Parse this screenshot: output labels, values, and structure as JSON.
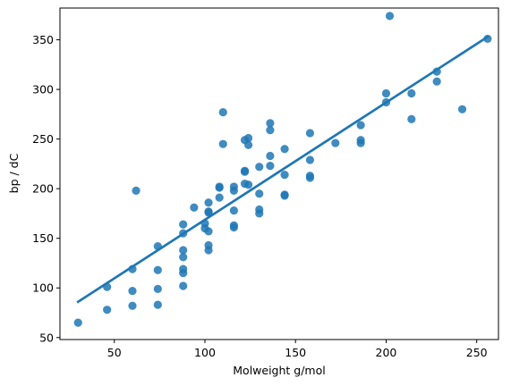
{
  "chart_data": {
    "type": "scatter",
    "title": "",
    "xlabel": "Molweight g/mol",
    "ylabel": "bp / dC",
    "xlim": [
      20,
      262
    ],
    "ylim": [
      48,
      382
    ],
    "xticks": [
      50,
      100,
      150,
      200,
      250
    ],
    "yticks": [
      50,
      100,
      150,
      200,
      250,
      300,
      350
    ],
    "grid": false,
    "legend": "none",
    "color": "#1f77b4",
    "points": [
      {
        "x": 30,
        "y": 65
      },
      {
        "x": 46,
        "y": 78
      },
      {
        "x": 46,
        "y": 101
      },
      {
        "x": 60,
        "y": 82
      },
      {
        "x": 60,
        "y": 97
      },
      {
        "x": 60,
        "y": 119
      },
      {
        "x": 62,
        "y": 198
      },
      {
        "x": 74,
        "y": 83
      },
      {
        "x": 74,
        "y": 99
      },
      {
        "x": 74,
        "y": 118
      },
      {
        "x": 74,
        "y": 142
      },
      {
        "x": 88,
        "y": 102
      },
      {
        "x": 88,
        "y": 115
      },
      {
        "x": 88,
        "y": 119
      },
      {
        "x": 88,
        "y": 131
      },
      {
        "x": 88,
        "y": 138
      },
      {
        "x": 88,
        "y": 155
      },
      {
        "x": 88,
        "y": 164
      },
      {
        "x": 94,
        "y": 181
      },
      {
        "x": 100,
        "y": 160
      },
      {
        "x": 100,
        "y": 165
      },
      {
        "x": 102,
        "y": 138
      },
      {
        "x": 102,
        "y": 143
      },
      {
        "x": 102,
        "y": 157
      },
      {
        "x": 102,
        "y": 176
      },
      {
        "x": 102,
        "y": 177
      },
      {
        "x": 102,
        "y": 186
      },
      {
        "x": 108,
        "y": 191
      },
      {
        "x": 108,
        "y": 201
      },
      {
        "x": 108,
        "y": 202
      },
      {
        "x": 110,
        "y": 245
      },
      {
        "x": 110,
        "y": 277
      },
      {
        "x": 116,
        "y": 161
      },
      {
        "x": 116,
        "y": 163
      },
      {
        "x": 116,
        "y": 178
      },
      {
        "x": 116,
        "y": 198
      },
      {
        "x": 116,
        "y": 202
      },
      {
        "x": 122,
        "y": 205
      },
      {
        "x": 122,
        "y": 217
      },
      {
        "x": 122,
        "y": 218
      },
      {
        "x": 122,
        "y": 249
      },
      {
        "x": 124,
        "y": 204
      },
      {
        "x": 124,
        "y": 244
      },
      {
        "x": 124,
        "y": 251
      },
      {
        "x": 130,
        "y": 175
      },
      {
        "x": 130,
        "y": 179
      },
      {
        "x": 130,
        "y": 195
      },
      {
        "x": 130,
        "y": 222
      },
      {
        "x": 136,
        "y": 223
      },
      {
        "x": 136,
        "y": 233
      },
      {
        "x": 136,
        "y": 259
      },
      {
        "x": 136,
        "y": 266
      },
      {
        "x": 144,
        "y": 193
      },
      {
        "x": 144,
        "y": 194
      },
      {
        "x": 144,
        "y": 214
      },
      {
        "x": 144,
        "y": 240
      },
      {
        "x": 158,
        "y": 211
      },
      {
        "x": 158,
        "y": 213
      },
      {
        "x": 158,
        "y": 229
      },
      {
        "x": 158,
        "y": 256
      },
      {
        "x": 172,
        "y": 246
      },
      {
        "x": 186,
        "y": 246
      },
      {
        "x": 186,
        "y": 249
      },
      {
        "x": 186,
        "y": 264
      },
      {
        "x": 200,
        "y": 287
      },
      {
        "x": 200,
        "y": 296
      },
      {
        "x": 202,
        "y": 374
      },
      {
        "x": 214,
        "y": 270
      },
      {
        "x": 214,
        "y": 296
      },
      {
        "x": 228,
        "y": 308
      },
      {
        "x": 228,
        "y": 318
      },
      {
        "x": 242,
        "y": 280
      },
      {
        "x": 256,
        "y": 351
      }
    ],
    "regression_line": {
      "x": [
        30,
        256
      ],
      "y": [
        86,
        353
      ]
    }
  }
}
